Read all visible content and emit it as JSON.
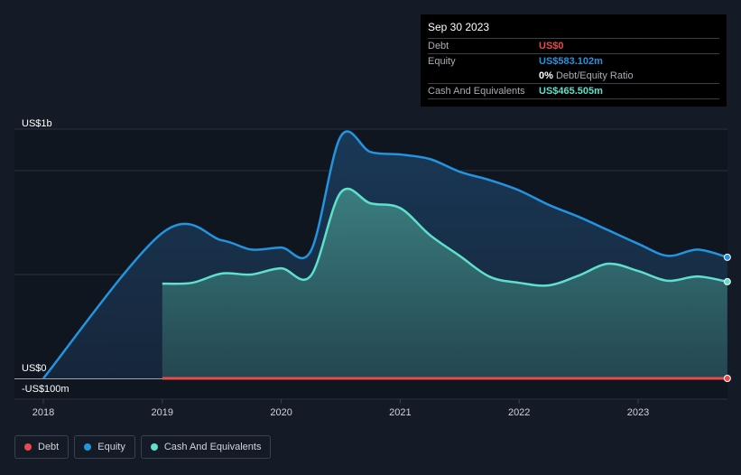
{
  "tooltip": {
    "date": "Sep 30 2023",
    "rows": [
      {
        "label": "Debt",
        "value": "US$0",
        "color": "#e94a4a"
      },
      {
        "label": "Equity",
        "value": "US$583.102m",
        "color": "#2394df"
      },
      {
        "label": "",
        "value": "0%",
        "suffix": "Debt/Equity Ratio",
        "color": "#ffffff"
      },
      {
        "label": "Cash And Equivalents",
        "value": "US$465.505m",
        "color": "#5ee0cc"
      }
    ]
  },
  "legend": [
    {
      "label": "Debt",
      "color": "#e94a4a"
    },
    {
      "label": "Equity",
      "color": "#2394df"
    },
    {
      "label": "Cash And Equivalents",
      "color": "#5ee0cc"
    }
  ],
  "chart_data": {
    "type": "area",
    "title": "",
    "xlabel": "",
    "ylabel": "",
    "x_ticks": [
      "2018",
      "2019",
      "2020",
      "2021",
      "2022",
      "2023"
    ],
    "y_ticks": [
      {
        "value": 1000,
        "label": "US$1b"
      },
      {
        "value": 0,
        "label": "US$0"
      },
      {
        "value": -100,
        "label": "-US$100m"
      }
    ],
    "ylim": [
      -100,
      1200
    ],
    "xlim": [
      2017.98,
      2023.8
    ],
    "units": "US$m",
    "series": [
      {
        "name": "Equity",
        "color": "#2394df",
        "x": [
          2018,
          2019,
          2019.5,
          2019.75,
          2020,
          2020.25,
          2020.5,
          2020.75,
          2021,
          2021.25,
          2021.5,
          2021.75,
          2022,
          2022.25,
          2022.5,
          2022.75,
          2023,
          2023.25,
          2023.5,
          2023.75
        ],
        "values": [
          0,
          700,
          665,
          620,
          630,
          615,
          1165,
          1090,
          1078,
          1056,
          995,
          955,
          905,
          835,
          778,
          713,
          648,
          590,
          620,
          583.1
        ]
      },
      {
        "name": "Cash And Equivalents",
        "color": "#5ee0cc",
        "x": [
          2019,
          2019.25,
          2019.5,
          2019.75,
          2020,
          2020.25,
          2020.5,
          2020.75,
          2021,
          2021.25,
          2021.5,
          2021.75,
          2022,
          2022.25,
          2022.5,
          2022.75,
          2023,
          2023.25,
          2023.5,
          2023.75
        ],
        "values": [
          456,
          460,
          505,
          500,
          530,
          495,
          895,
          843,
          820,
          690,
          590,
          490,
          460,
          448,
          495,
          552,
          517,
          470,
          491,
          465.5
        ]
      },
      {
        "name": "Debt",
        "color": "#e94a4a",
        "x": [
          2019,
          2023.75
        ],
        "values": [
          0,
          0
        ]
      }
    ]
  }
}
